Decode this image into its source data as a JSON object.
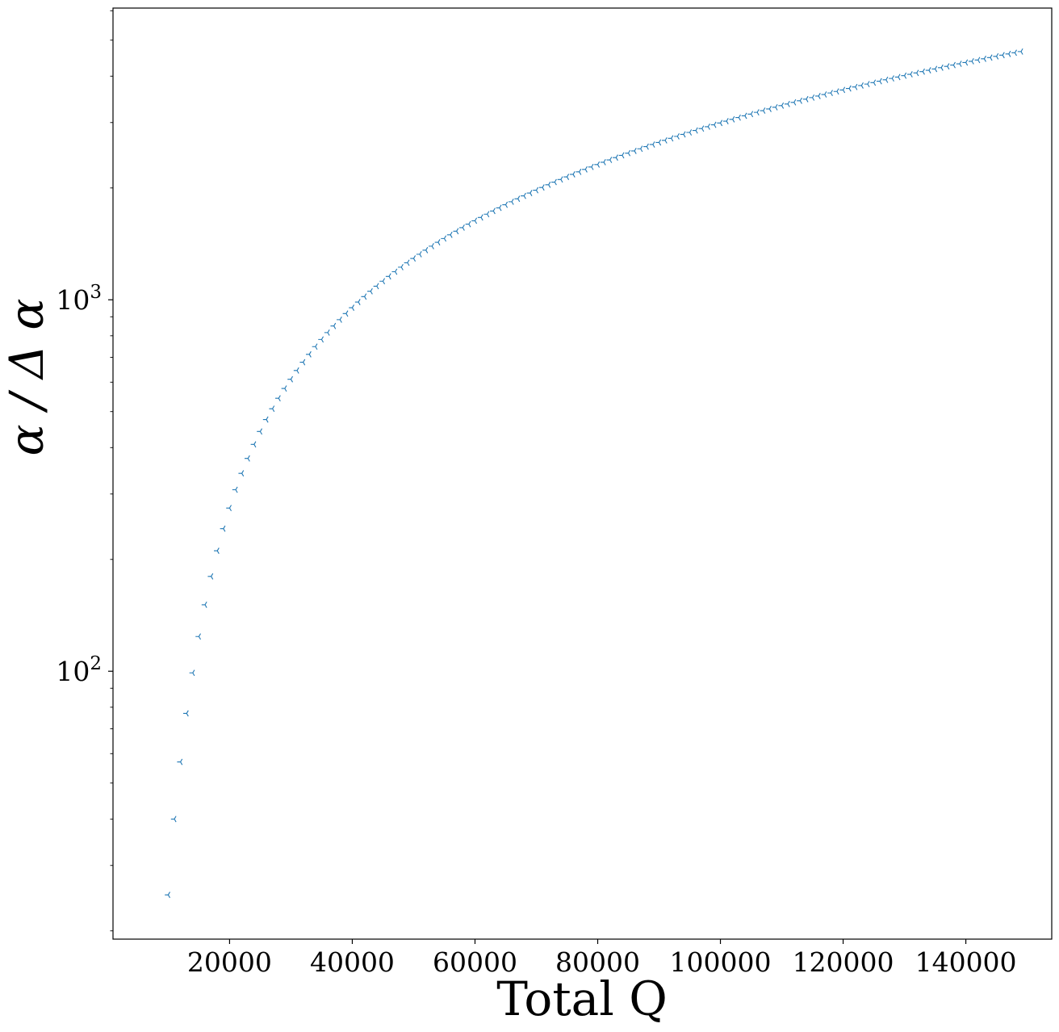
{
  "chart_data": {
    "type": "scatter",
    "title": "",
    "xlabel": "Total Q",
    "ylabel": "α / Δ α",
    "xscale": "linear",
    "yscale": "log",
    "xlim": [
      1000,
      154000
    ],
    "ylim": [
      19,
      6100
    ],
    "xticks": [
      20000,
      40000,
      60000,
      80000,
      100000,
      120000,
      140000
    ],
    "xtick_labels": [
      "20000",
      "40000",
      "60000",
      "80000",
      "100000",
      "120000",
      "140000"
    ],
    "yticks_major": [
      100,
      1000
    ],
    "ytick_labels": [
      "10",
      "10"
    ],
    "ytick_label_exponents": [
      "2",
      "3"
    ],
    "grid": false,
    "legend": "none",
    "marker": "tri_left",
    "color": "#1f77b4",
    "series": [
      {
        "x_start": 10000,
        "x_step": 1000,
        "y": [
          25,
          40,
          57,
          77,
          99,
          124,
          151,
          180,
          211,
          242,
          275,
          308,
          341,
          374,
          408,
          442,
          476,
          509,
          543,
          577,
          611,
          645,
          679,
          713,
          748,
          782,
          816,
          850,
          884,
          918,
          952,
          986,
          1020,
          1054,
          1088,
          1122,
          1156,
          1190,
          1224,
          1258,
          1292,
          1326,
          1360,
          1394,
          1428,
          1462,
          1496,
          1530,
          1564,
          1598,
          1632,
          1666,
          1700,
          1734,
          1768,
          1802,
          1836,
          1870,
          1904,
          1938,
          1972,
          2006,
          2040,
          2074,
          2108,
          2142,
          2176,
          2210,
          2244,
          2278,
          2312,
          2346,
          2380,
          2414,
          2448,
          2482,
          2516,
          2550,
          2584,
          2618,
          2652,
          2686,
          2720,
          2754,
          2788,
          2822,
          2856,
          2890,
          2924,
          2958,
          2992,
          3026,
          3060,
          3094,
          3128,
          3162,
          3196,
          3230,
          3264,
          3298,
          3332,
          3366,
          3400,
          3434,
          3468,
          3502,
          3536,
          3570,
          3604,
          3638,
          3672,
          3706,
          3740,
          3774,
          3808,
          3842,
          3876,
          3910,
          3944,
          3978,
          4012,
          4046,
          4080,
          4114,
          4148,
          4182,
          4216,
          4250,
          4284,
          4318,
          4352,
          4386,
          4420,
          4454,
          4488,
          4522,
          4556,
          4590,
          4624,
          4658
        ]
      }
    ]
  }
}
